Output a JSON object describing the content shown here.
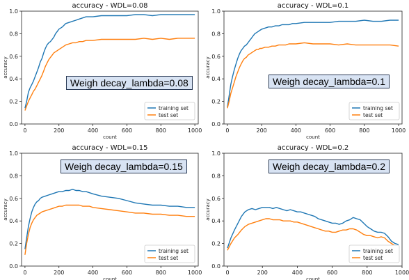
{
  "colors": {
    "training": "#1f77b4",
    "test": "#ff7f0e"
  },
  "chart_data": [
    {
      "type": "line",
      "title": "accuracy - WDL=0.08",
      "xlabel": "count",
      "ylabel": "accuracy",
      "xlim": [
        -20,
        1020
      ],
      "ylim": [
        0,
        1.0
      ],
      "xticks": [
        "0",
        "200",
        "400",
        "600",
        "800",
        "1000"
      ],
      "yticks": [
        "0.0",
        "0.2",
        "0.4",
        "0.6",
        "0.8",
        "1.0"
      ],
      "legend": {
        "position": "lower-right",
        "entries": [
          "training set",
          "test set"
        ]
      },
      "annotation": "Weigh decay_lambda=0.08",
      "series": [
        {
          "name": "training set",
          "x": [
            0,
            10,
            20,
            30,
            40,
            50,
            60,
            70,
            80,
            90,
            100,
            110,
            120,
            130,
            140,
            150,
            160,
            170,
            180,
            190,
            200,
            220,
            240,
            260,
            280,
            300,
            320,
            340,
            360,
            380,
            400,
            450,
            500,
            550,
            600,
            650,
            700,
            750,
            800,
            850,
            900,
            950,
            1000
          ],
          "y": [
            0.14,
            0.2,
            0.28,
            0.32,
            0.35,
            0.38,
            0.42,
            0.46,
            0.5,
            0.55,
            0.58,
            0.63,
            0.67,
            0.7,
            0.72,
            0.73,
            0.75,
            0.77,
            0.8,
            0.82,
            0.84,
            0.86,
            0.89,
            0.9,
            0.91,
            0.92,
            0.93,
            0.94,
            0.95,
            0.95,
            0.95,
            0.96,
            0.96,
            0.96,
            0.96,
            0.97,
            0.97,
            0.96,
            0.97,
            0.97,
            0.97,
            0.97,
            0.97
          ]
        },
        {
          "name": "test set",
          "x": [
            0,
            10,
            20,
            30,
            40,
            50,
            60,
            70,
            80,
            90,
            100,
            110,
            120,
            130,
            140,
            150,
            160,
            170,
            180,
            190,
            200,
            220,
            240,
            260,
            280,
            300,
            320,
            340,
            360,
            380,
            400,
            450,
            500,
            550,
            600,
            650,
            700,
            750,
            800,
            850,
            900,
            950,
            1000
          ],
          "y": [
            0.12,
            0.16,
            0.2,
            0.23,
            0.26,
            0.29,
            0.31,
            0.34,
            0.37,
            0.4,
            0.43,
            0.47,
            0.51,
            0.54,
            0.57,
            0.59,
            0.61,
            0.63,
            0.64,
            0.65,
            0.66,
            0.68,
            0.7,
            0.71,
            0.72,
            0.72,
            0.73,
            0.73,
            0.74,
            0.74,
            0.74,
            0.75,
            0.75,
            0.75,
            0.75,
            0.75,
            0.76,
            0.75,
            0.76,
            0.75,
            0.76,
            0.76,
            0.76
          ]
        }
      ]
    },
    {
      "type": "line",
      "title": "accuracy - WDL=0.1",
      "xlabel": "count",
      "ylabel": "accuracy",
      "xlim": [
        -20,
        1020
      ],
      "ylim": [
        0,
        1.0
      ],
      "xticks": [
        "0",
        "200",
        "400",
        "600",
        "800",
        "1000"
      ],
      "yticks": [
        "0.0",
        "0.2",
        "0.4",
        "0.6",
        "0.8",
        "1.0"
      ],
      "legend": {
        "position": "lower-right",
        "entries": [
          "training set",
          "test set"
        ]
      },
      "annotation": "Weigh decay_lambda=0.1",
      "series": [
        {
          "name": "training set",
          "x": [
            0,
            10,
            20,
            30,
            40,
            50,
            60,
            70,
            80,
            90,
            100,
            110,
            120,
            130,
            140,
            150,
            160,
            170,
            180,
            190,
            200,
            220,
            240,
            260,
            280,
            300,
            320,
            340,
            360,
            380,
            400,
            450,
            500,
            550,
            600,
            650,
            700,
            750,
            800,
            850,
            900,
            950,
            1000
          ],
          "y": [
            0.15,
            0.25,
            0.35,
            0.42,
            0.48,
            0.53,
            0.58,
            0.62,
            0.65,
            0.67,
            0.69,
            0.7,
            0.72,
            0.74,
            0.76,
            0.78,
            0.8,
            0.81,
            0.82,
            0.83,
            0.84,
            0.85,
            0.86,
            0.86,
            0.87,
            0.87,
            0.88,
            0.88,
            0.88,
            0.89,
            0.89,
            0.9,
            0.9,
            0.9,
            0.9,
            0.91,
            0.91,
            0.91,
            0.92,
            0.91,
            0.91,
            0.92,
            0.92
          ]
        },
        {
          "name": "test set",
          "x": [
            0,
            10,
            20,
            30,
            40,
            50,
            60,
            70,
            80,
            90,
            100,
            110,
            120,
            130,
            140,
            150,
            160,
            170,
            180,
            190,
            200,
            220,
            240,
            260,
            280,
            300,
            320,
            340,
            360,
            380,
            400,
            450,
            500,
            550,
            600,
            650,
            700,
            750,
            800,
            850,
            900,
            950,
            1000
          ],
          "y": [
            0.14,
            0.2,
            0.27,
            0.32,
            0.37,
            0.42,
            0.46,
            0.5,
            0.53,
            0.56,
            0.58,
            0.59,
            0.61,
            0.62,
            0.63,
            0.64,
            0.65,
            0.66,
            0.66,
            0.67,
            0.67,
            0.68,
            0.68,
            0.69,
            0.69,
            0.7,
            0.7,
            0.7,
            0.71,
            0.71,
            0.71,
            0.72,
            0.71,
            0.71,
            0.71,
            0.7,
            0.71,
            0.7,
            0.7,
            0.7,
            0.7,
            0.7,
            0.69
          ]
        }
      ]
    },
    {
      "type": "line",
      "title": "accuracy - WDL=0.15",
      "xlabel": "count",
      "ylabel": "accuracy",
      "xlim": [
        -20,
        1020
      ],
      "ylim": [
        0,
        1.0
      ],
      "xticks": [
        "0",
        "200",
        "400",
        "600",
        "800",
        "1000"
      ],
      "yticks": [
        "0.0",
        "0.2",
        "0.4",
        "0.6",
        "0.8",
        "1.0"
      ],
      "legend": {
        "position": "lower-right",
        "entries": [
          "training set",
          "test set"
        ]
      },
      "annotation": "Weigh decay_lambda=0.15",
      "series": [
        {
          "name": "training set",
          "x": [
            0,
            10,
            20,
            30,
            40,
            50,
            60,
            70,
            80,
            90,
            100,
            120,
            140,
            160,
            180,
            200,
            220,
            240,
            260,
            280,
            300,
            320,
            340,
            360,
            380,
            400,
            450,
            500,
            550,
            600,
            650,
            700,
            750,
            800,
            850,
            900,
            950,
            1000
          ],
          "y": [
            0.15,
            0.25,
            0.35,
            0.42,
            0.48,
            0.52,
            0.55,
            0.57,
            0.58,
            0.6,
            0.61,
            0.62,
            0.63,
            0.64,
            0.65,
            0.66,
            0.66,
            0.67,
            0.67,
            0.68,
            0.67,
            0.67,
            0.66,
            0.66,
            0.65,
            0.64,
            0.62,
            0.61,
            0.6,
            0.58,
            0.56,
            0.55,
            0.54,
            0.54,
            0.53,
            0.53,
            0.52,
            0.52
          ]
        },
        {
          "name": "test set",
          "x": [
            0,
            10,
            20,
            30,
            40,
            50,
            60,
            70,
            80,
            90,
            100,
            120,
            140,
            160,
            180,
            200,
            220,
            240,
            260,
            280,
            300,
            320,
            340,
            360,
            380,
            400,
            450,
            500,
            550,
            600,
            650,
            700,
            750,
            800,
            850,
            900,
            950,
            1000
          ],
          "y": [
            0.1,
            0.2,
            0.28,
            0.34,
            0.38,
            0.41,
            0.43,
            0.45,
            0.46,
            0.47,
            0.48,
            0.49,
            0.5,
            0.51,
            0.52,
            0.53,
            0.53,
            0.54,
            0.54,
            0.54,
            0.54,
            0.54,
            0.53,
            0.53,
            0.53,
            0.52,
            0.51,
            0.5,
            0.49,
            0.48,
            0.47,
            0.47,
            0.46,
            0.46,
            0.45,
            0.45,
            0.44,
            0.44
          ]
        }
      ]
    },
    {
      "type": "line",
      "title": "accuracy - WDL=0.2",
      "xlabel": "count",
      "ylabel": "accuracy",
      "xlim": [
        -20,
        1000
      ],
      "ylim": [
        0,
        1.0
      ],
      "xticks": [
        "0",
        "200",
        "400",
        "600",
        "800",
        "1000"
      ],
      "yticks": [
        "0.0",
        "0.2",
        "0.4",
        "0.6",
        "0.8",
        "1.0"
      ],
      "legend": {
        "position": "lower-right",
        "entries": [
          "training set",
          "test set"
        ]
      },
      "annotation": "Weigh decay_lambda=0.2",
      "series": [
        {
          "name": "training set",
          "x": [
            0,
            20,
            40,
            60,
            80,
            100,
            120,
            140,
            160,
            180,
            200,
            220,
            240,
            260,
            280,
            300,
            320,
            340,
            360,
            380,
            400,
            420,
            440,
            460,
            480,
            500,
            520,
            540,
            560,
            580,
            600,
            620,
            640,
            660,
            680,
            700,
            720,
            740,
            760,
            780,
            800,
            820,
            840,
            860,
            880,
            900,
            920,
            940,
            960,
            980
          ],
          "y": [
            0.16,
            0.25,
            0.32,
            0.38,
            0.44,
            0.48,
            0.5,
            0.51,
            0.5,
            0.51,
            0.52,
            0.52,
            0.52,
            0.51,
            0.52,
            0.51,
            0.5,
            0.49,
            0.5,
            0.49,
            0.48,
            0.48,
            0.47,
            0.46,
            0.45,
            0.44,
            0.42,
            0.41,
            0.4,
            0.39,
            0.38,
            0.38,
            0.37,
            0.38,
            0.4,
            0.41,
            0.43,
            0.42,
            0.41,
            0.38,
            0.35,
            0.33,
            0.31,
            0.3,
            0.3,
            0.29,
            0.26,
            0.22,
            0.2,
            0.19
          ]
        },
        {
          "name": "test set",
          "x": [
            0,
            20,
            40,
            60,
            80,
            100,
            120,
            140,
            160,
            180,
            200,
            220,
            240,
            260,
            280,
            300,
            320,
            340,
            360,
            380,
            400,
            420,
            440,
            460,
            480,
            500,
            520,
            540,
            560,
            580,
            600,
            620,
            640,
            660,
            680,
            700,
            720,
            740,
            760,
            780,
            800,
            820,
            840,
            860,
            880,
            900,
            920,
            940,
            960,
            980
          ],
          "y": [
            0.14,
            0.2,
            0.25,
            0.28,
            0.32,
            0.35,
            0.37,
            0.38,
            0.39,
            0.4,
            0.41,
            0.42,
            0.42,
            0.41,
            0.41,
            0.41,
            0.4,
            0.4,
            0.4,
            0.39,
            0.39,
            0.38,
            0.37,
            0.36,
            0.35,
            0.34,
            0.33,
            0.32,
            0.31,
            0.31,
            0.3,
            0.3,
            0.31,
            0.32,
            0.32,
            0.33,
            0.33,
            0.32,
            0.3,
            0.28,
            0.27,
            0.27,
            0.26,
            0.25,
            0.26,
            0.25,
            0.22,
            0.2,
            0.18,
            0.16
          ]
        }
      ]
    }
  ]
}
